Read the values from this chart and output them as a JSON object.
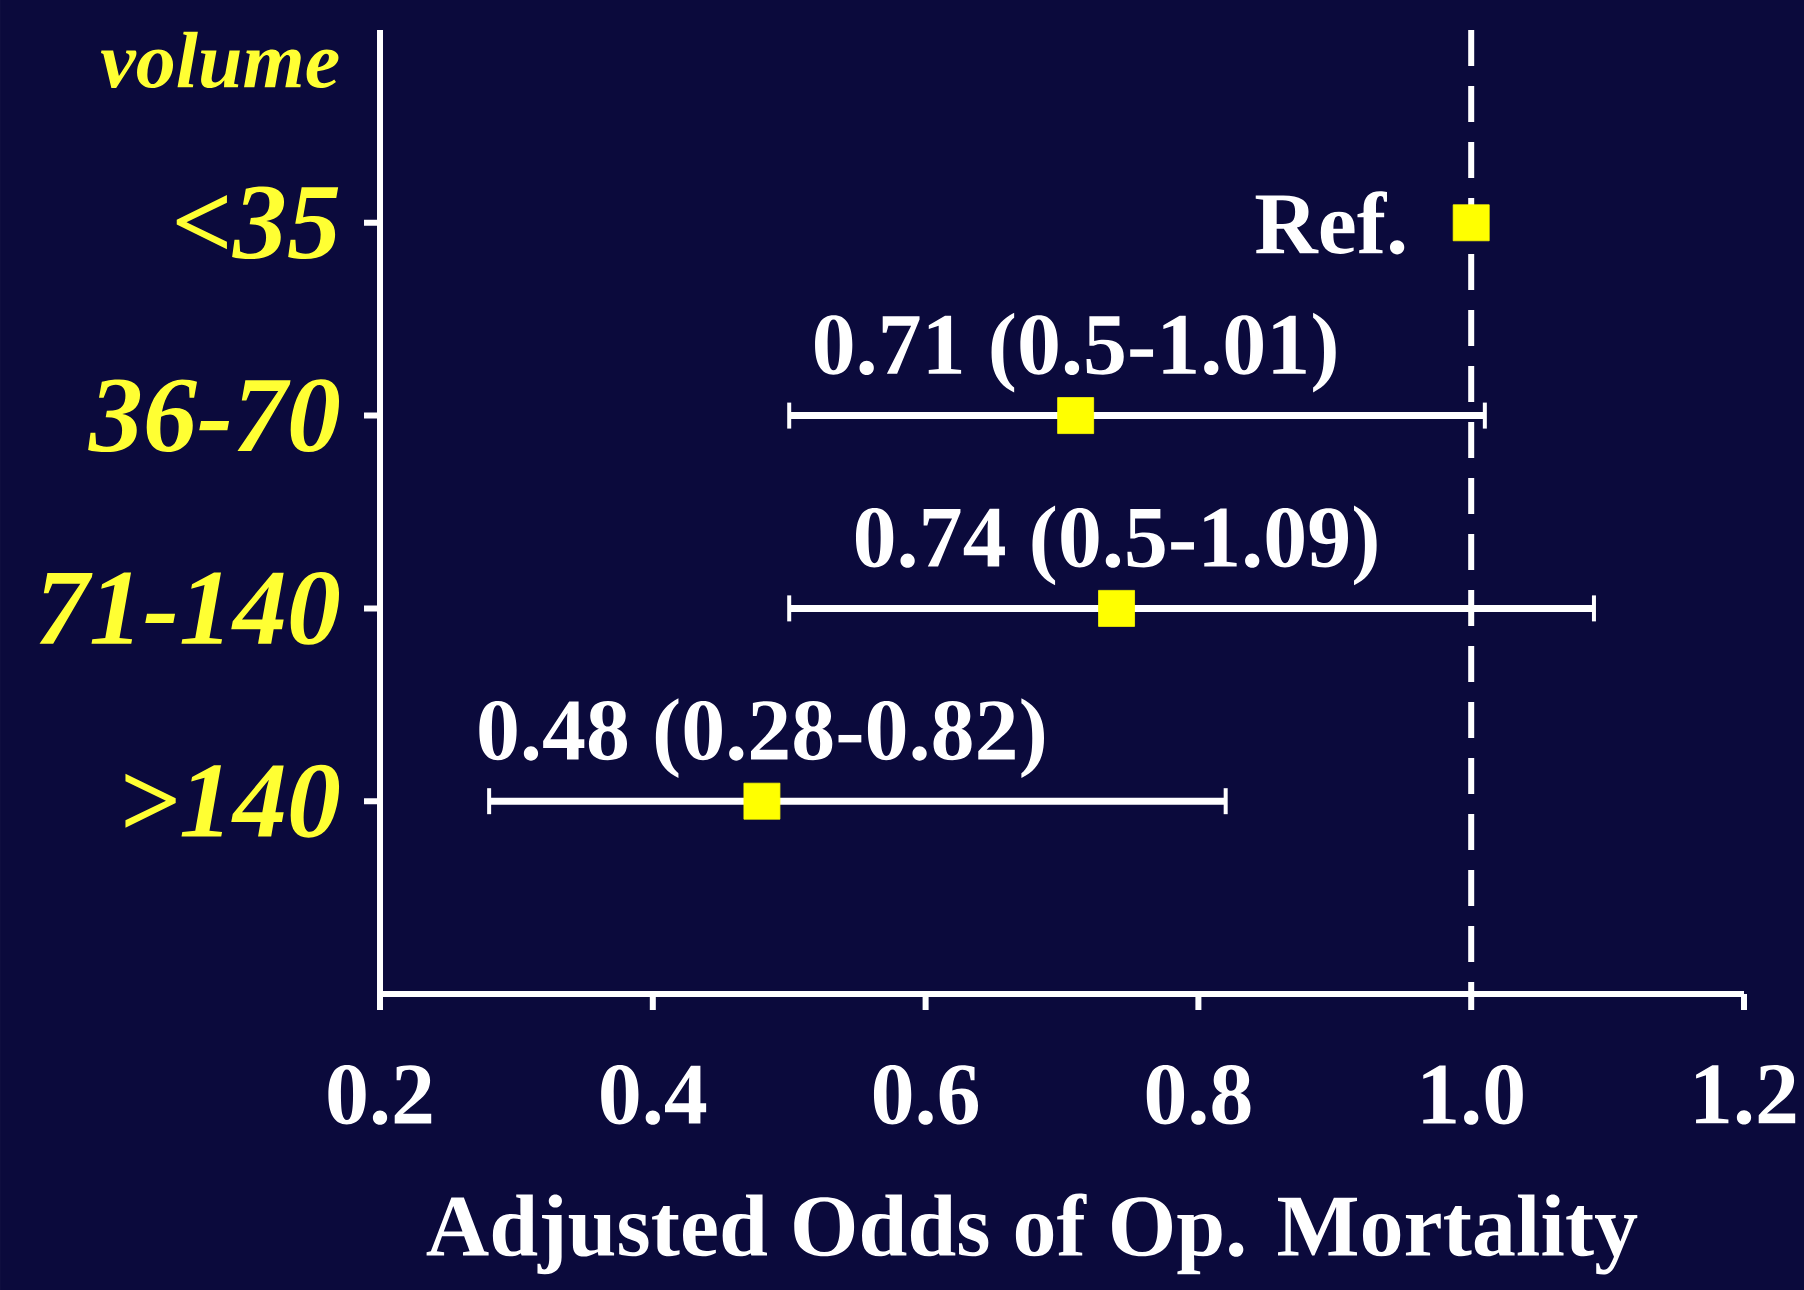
{
  "chart_data": {
    "type": "scatter",
    "orientation": "horizontal",
    "ylabel": "volume",
    "xlabel": "Adjusted Odds of Op. Mortality",
    "categories": [
      "<35",
      "36-70",
      "71-140",
      ">140"
    ],
    "values": [
      1.0,
      0.71,
      0.74,
      0.48
    ],
    "errors": [
      null,
      [
        0.5,
        1.01
      ],
      [
        0.5,
        1.09
      ],
      [
        0.28,
        0.82
      ]
    ],
    "value_labels": [
      "Ref.",
      "0.71 (0.5-1.01)",
      "0.74 (0.5-1.09)",
      "0.48 (0.28-0.82)"
    ],
    "color": "#ffff00",
    "marker": "square",
    "xlim": [
      0.2,
      1.2
    ],
    "xticks": [
      0.2,
      0.4,
      0.6,
      0.8,
      {
        "value": 1.0,
        "label": "1.0"
      },
      1.2
    ],
    "ref_lines": [
      {
        "axis": "x",
        "value": 1.0,
        "color": "#ffffff",
        "line_style": "dashed"
      }
    ]
  }
}
